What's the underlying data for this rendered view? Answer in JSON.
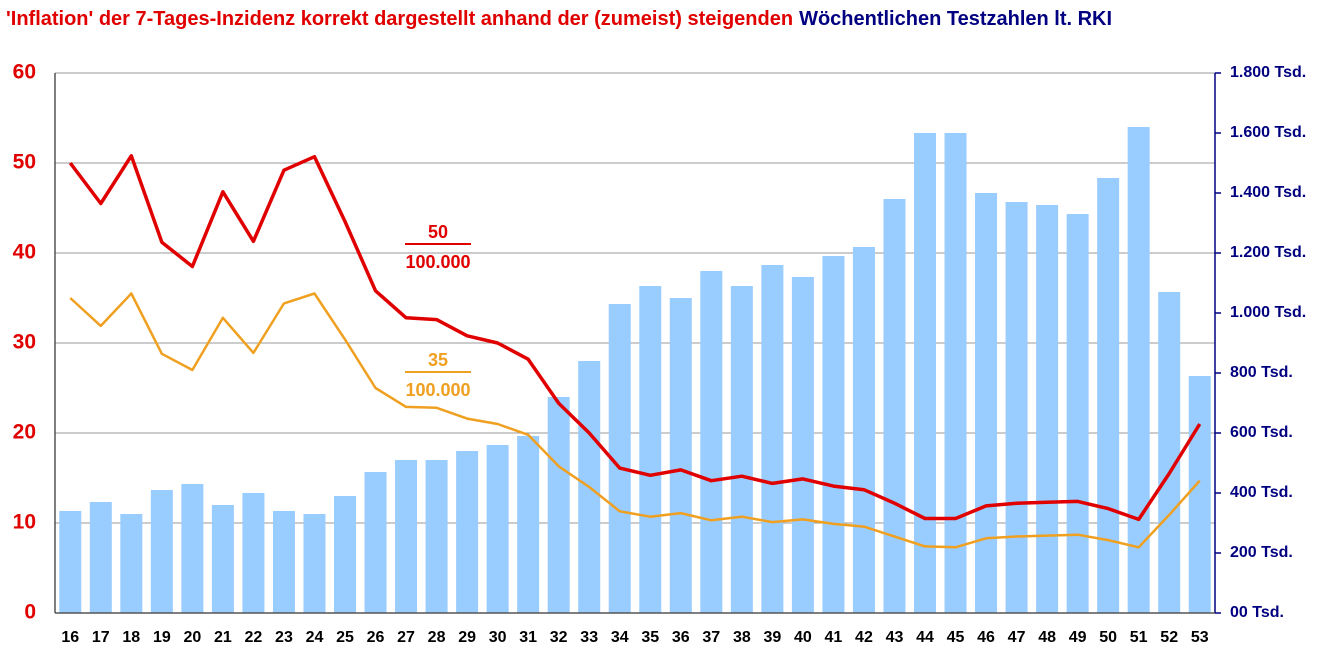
{
  "chart_data": {
    "type": "bar-line",
    "title_parts": [
      {
        "text": "'Inflation' der 7-Tages-Inzidenz korrekt dargestellt anhand der (zumeist) steigenden",
        "color": "#e00000"
      },
      {
        "text": "Wöchentlichen Testzahlen lt. RKI",
        "color": "#000080"
      }
    ],
    "categories": [
      "16",
      "17",
      "18",
      "19",
      "20",
      "21",
      "22",
      "23",
      "24",
      "25",
      "26",
      "27",
      "28",
      "29",
      "30",
      "31",
      "32",
      "33",
      "34",
      "35",
      "36",
      "37",
      "38",
      "39",
      "40",
      "41",
      "42",
      "43",
      "44",
      "45",
      "46",
      "47",
      "48",
      "49",
      "50",
      "51",
      "52",
      "53"
    ],
    "series": [
      {
        "type": "bar",
        "axis": "y2",
        "color": "#99ccff",
        "values": [
          340,
          370,
          330,
          410,
          430,
          360,
          400,
          340,
          330,
          390,
          470,
          510,
          510,
          540,
          560,
          590,
          720,
          840,
          1030,
          1090,
          1050,
          1140,
          1090,
          1160,
          1120,
          1190,
          1220,
          1380,
          1600,
          1600,
          1400,
          1370,
          1360,
          1330,
          1450,
          1620,
          1070,
          790
        ]
      },
      {
        "type": "line",
        "axis": "y",
        "color": "#e00000",
        "width": 3.5,
        "values": [
          50,
          45.5,
          50.8,
          41.2,
          38.5,
          46.8,
          41.3,
          49.2,
          50.7,
          43.5,
          35.8,
          32.8,
          32.6,
          30.8,
          30,
          28.2,
          23.3,
          20,
          16.1,
          15.3,
          15.9,
          14.7,
          15.2,
          14.4,
          14.9,
          14.1,
          13.7,
          12.2,
          10.5,
          10.5,
          11.9,
          12.2,
          12.3,
          12.4,
          11.6,
          10.4,
          15.5,
          21
        ]
      },
      {
        "type": "line",
        "axis": "y",
        "color": "#f0a020",
        "width": 2.5,
        "values": [
          35,
          31.9,
          35.5,
          28.8,
          27,
          32.8,
          28.9,
          34.4,
          35.5,
          30.4,
          25,
          22.9,
          22.8,
          21.6,
          21,
          19.8,
          16.3,
          14,
          11.3,
          10.7,
          11.1,
          10.3,
          10.7,
          10.1,
          10.4,
          9.9,
          9.6,
          8.5,
          7.4,
          7.3,
          8.3,
          8.5,
          8.6,
          8.7,
          8.1,
          7.3,
          10.9,
          14.7
        ]
      }
    ],
    "ylim": [
      0,
      60
    ],
    "yticks": [
      0,
      10,
      20,
      30,
      40,
      50,
      60
    ],
    "y_color": "#e00000",
    "y2lim": [
      0,
      1800
    ],
    "y2ticks": [
      {
        "value": 0,
        "label": "00 Tsd."
      },
      {
        "value": 200,
        "label": "200 Tsd."
      },
      {
        "value": 400,
        "label": "400 Tsd."
      },
      {
        "value": 600,
        "label": "600 Tsd."
      },
      {
        "value": 800,
        "label": "800 Tsd."
      },
      {
        "value": 1000,
        "label": "1.000 Tsd."
      },
      {
        "value": 1200,
        "label": "1.200 Tsd."
      },
      {
        "value": 1400,
        "label": "1.400 Tsd."
      },
      {
        "value": 1600,
        "label": "1.600 Tsd."
      },
      {
        "value": 1800,
        "label": "1.800 Tsd."
      }
    ],
    "y2_color": "#000080",
    "grid": true,
    "annotations": [
      {
        "numerator": "50",
        "denominator": "100.000",
        "color": "#e00000"
      },
      {
        "numerator": "35",
        "denominator": "100.000",
        "color": "#f0a020"
      }
    ]
  }
}
